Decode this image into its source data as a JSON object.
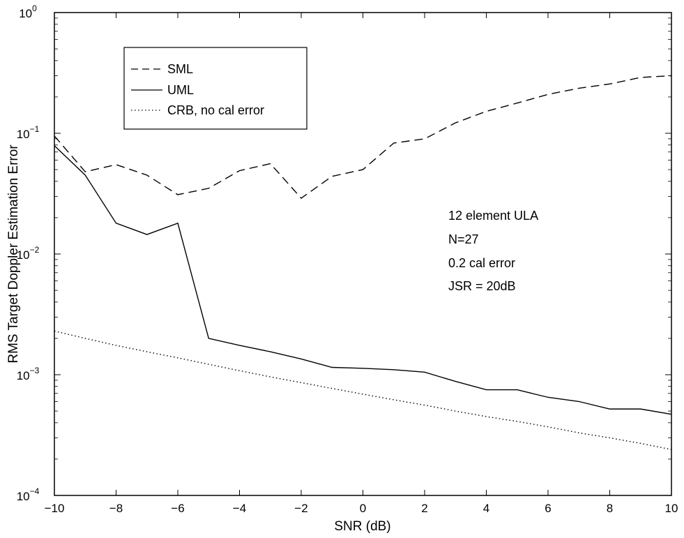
{
  "chart_data": {
    "type": "line",
    "title": "",
    "xlabel": "SNR (dB)",
    "ylabel": "RMS Target Doppler Estimation Error",
    "xlim": [
      -10,
      10
    ],
    "ylim": [
      0.0001,
      1
    ],
    "yscale": "log",
    "grid": false,
    "legend_position": "top-left",
    "x_ticks": [
      -10,
      -8,
      -6,
      -4,
      -2,
      0,
      2,
      4,
      6,
      8,
      10
    ],
    "x_tick_labels": [
      "−10",
      "−8",
      "−6",
      "−4",
      "−2",
      "0",
      "2",
      "4",
      "6",
      "8",
      "10"
    ],
    "y_ticks": [
      {
        "value": 0.0001,
        "base": "10",
        "exp": "−4"
      },
      {
        "value": 0.001,
        "base": "10",
        "exp": "−3"
      },
      {
        "value": 0.01,
        "base": "10",
        "exp": "−2"
      },
      {
        "value": 0.1,
        "base": "10",
        "exp": "−1"
      },
      {
        "value": 1,
        "base": "10",
        "exp": "0"
      }
    ],
    "x": [
      -10,
      -9,
      -8,
      -7,
      -6,
      -5,
      -4,
      -3,
      -2,
      -1,
      0,
      1,
      2,
      3,
      4,
      5,
      6,
      7,
      8,
      9,
      10
    ],
    "series": [
      {
        "name": "SML",
        "style": "dashed",
        "values": [
          0.095,
          0.048,
          0.055,
          0.045,
          0.031,
          0.035,
          0.049,
          0.056,
          0.029,
          0.044,
          0.05,
          0.083,
          0.09,
          0.122,
          0.152,
          0.178,
          0.21,
          0.236,
          0.256,
          0.29,
          0.3
        ]
      },
      {
        "name": "UML",
        "style": "solid",
        "values": [
          0.079,
          0.045,
          0.018,
          0.0145,
          0.018,
          0.002,
          0.00175,
          0.00155,
          0.00135,
          0.00115,
          0.00113,
          0.0011,
          0.00105,
          0.00088,
          0.00075,
          0.00075,
          0.00065,
          0.0006,
          0.00052,
          0.00052,
          0.00047
        ]
      },
      {
        "name": "CRB, no cal error",
        "style": "dotted",
        "values": [
          0.0023,
          0.002,
          0.00175,
          0.00155,
          0.00138,
          0.00122,
          0.00108,
          0.00096,
          0.00086,
          0.00077,
          0.00069,
          0.00062,
          0.00056,
          0.0005,
          0.00045,
          0.00041,
          0.00037,
          0.00033,
          0.0003,
          0.00027,
          0.00024
        ]
      }
    ],
    "annotations": [
      "12 element ULA",
      "N=27",
      "0.2 cal error",
      "JSR = 20dB"
    ]
  }
}
